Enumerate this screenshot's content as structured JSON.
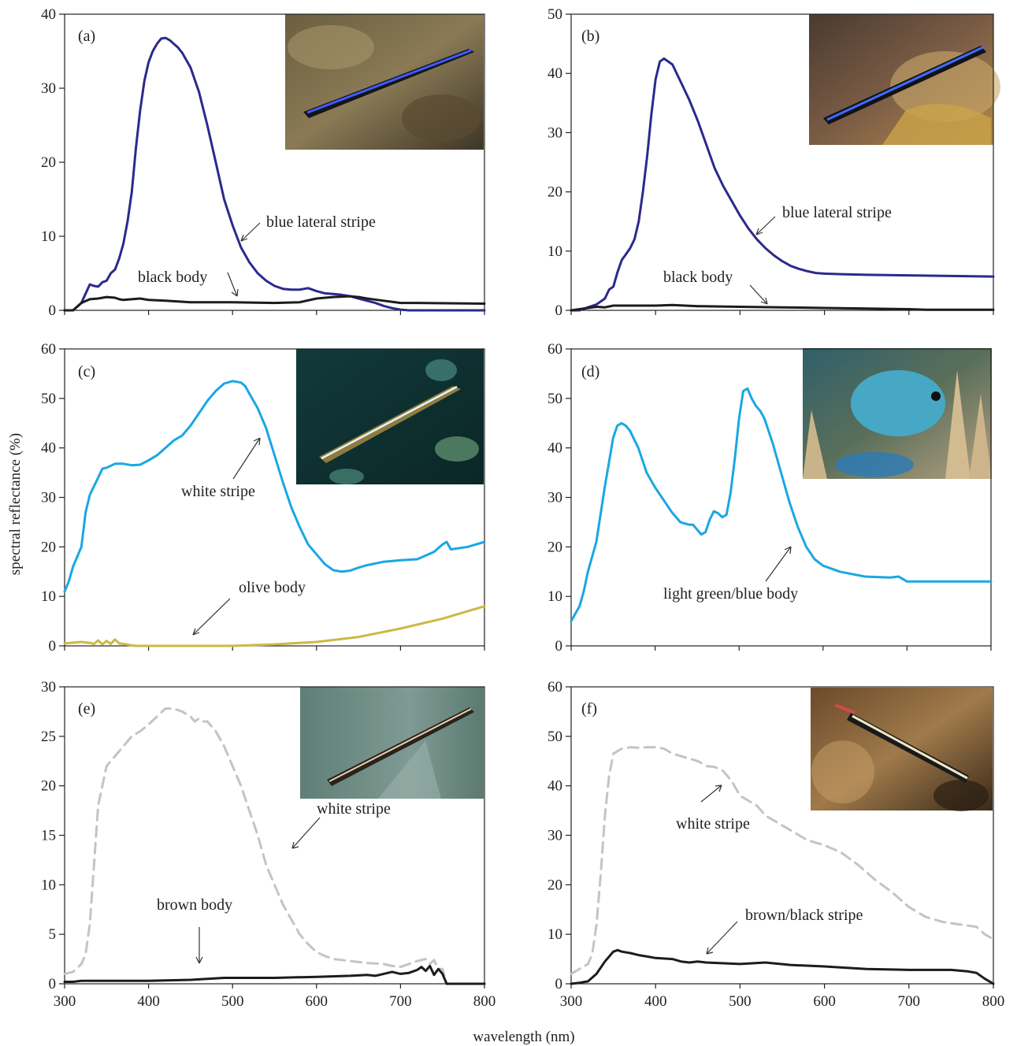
{
  "figure": {
    "xlabel": "wavelength (nm)",
    "ylabel": "spectral reflectance (%)"
  },
  "colors": {
    "navy": "#2b2a8c",
    "black": "#1c1c1c",
    "sky": "#1aa7e4",
    "olive": "#cbb944",
    "grey_dashed": "#c4c4c4"
  },
  "chart_data": [
    {
      "type": "line",
      "panel": "(a)",
      "xlim": [
        300,
        800
      ],
      "ylim": [
        0,
        40
      ],
      "xticks": [
        300,
        400,
        500,
        600,
        700,
        800
      ],
      "yticks": [
        0,
        10,
        20,
        30,
        40
      ],
      "photo": "cleaner fish with blue lateral stripe",
      "series": [
        {
          "name": "blue lateral stripe",
          "color": "navy",
          "dashed": false,
          "x": [
            300,
            310,
            320,
            330,
            335,
            340,
            345,
            350,
            355,
            360,
            365,
            370,
            375,
            380,
            385,
            390,
            395,
            400,
            405,
            410,
            415,
            420,
            425,
            430,
            435,
            440,
            450,
            460,
            470,
            480,
            490,
            500,
            510,
            520,
            530,
            540,
            550,
            560,
            570,
            580,
            590,
            600,
            610,
            620,
            630,
            640,
            650,
            660,
            670,
            680,
            690,
            700,
            710,
            720,
            800
          ],
          "y": [
            0,
            0,
            1,
            3.5,
            3.3,
            3.2,
            3.8,
            4,
            5,
            5.5,
            7,
            9,
            12,
            16,
            22,
            27,
            31,
            33.5,
            35,
            36,
            36.7,
            36.8,
            36.5,
            36,
            35.5,
            34.8,
            32.8,
            29.5,
            25,
            20,
            15,
            11.5,
            8.5,
            6.5,
            5,
            4,
            3.3,
            2.9,
            2.8,
            2.8,
            3,
            2.6,
            2.3,
            2.2,
            2.1,
            1.9,
            1.6,
            1.3,
            1,
            0.6,
            0.3,
            0.1,
            0,
            0,
            0
          ]
        },
        {
          "name": "black body",
          "color": "black",
          "dashed": false,
          "x": [
            300,
            310,
            320,
            330,
            340,
            350,
            360,
            365,
            370,
            380,
            390,
            400,
            420,
            450,
            500,
            550,
            580,
            600,
            620,
            640,
            650,
            660,
            680,
            700,
            720,
            800
          ],
          "y": [
            0,
            0,
            1,
            1.5,
            1.6,
            1.8,
            1.7,
            1.5,
            1.4,
            1.5,
            1.6,
            1.4,
            1.3,
            1.1,
            1.1,
            1.0,
            1.1,
            1.6,
            1.8,
            1.9,
            1.8,
            1.6,
            1.3,
            1.0,
            1.0,
            0.9
          ]
        }
      ],
      "annotations": [
        {
          "text": "blue lateral stripe"
        },
        {
          "text": "black body"
        }
      ]
    },
    {
      "type": "line",
      "panel": "(b)",
      "xlim": [
        300,
        800
      ],
      "ylim": [
        0,
        50
      ],
      "xticks": [
        300,
        400,
        500,
        600,
        700,
        800
      ],
      "yticks": [
        0,
        10,
        20,
        30,
        40,
        50
      ],
      "photo": "cleaner fish with blue lateral stripe near host fish",
      "series": [
        {
          "name": "blue lateral stripe",
          "color": "navy",
          "dashed": false,
          "x": [
            300,
            310,
            320,
            330,
            340,
            345,
            350,
            355,
            360,
            365,
            370,
            375,
            380,
            385,
            390,
            395,
            400,
            405,
            410,
            420,
            430,
            440,
            450,
            460,
            470,
            480,
            490,
            500,
            510,
            520,
            530,
            540,
            550,
            560,
            570,
            580,
            590,
            600,
            620,
            650,
            700,
            750,
            800
          ],
          "y": [
            0,
            0,
            0.5,
            1,
            2,
            3.5,
            4,
            6.5,
            8.5,
            9.5,
            10.5,
            12,
            15,
            20,
            26,
            33,
            39,
            42,
            42.5,
            41.5,
            38.5,
            35.5,
            32,
            28,
            24,
            21,
            18.5,
            16,
            13.8,
            12,
            10.5,
            9.3,
            8.3,
            7.5,
            7,
            6.6,
            6.3,
            6.2,
            6.1,
            6,
            5.9,
            5.8,
            5.7
          ]
        },
        {
          "name": "black body",
          "color": "black",
          "dashed": false,
          "x": [
            300,
            320,
            330,
            340,
            350,
            400,
            420,
            450,
            500,
            550,
            600,
            650,
            700,
            720,
            800
          ],
          "y": [
            0,
            0.4,
            0.6,
            0.5,
            0.8,
            0.8,
            0.9,
            0.7,
            0.6,
            0.5,
            0.4,
            0.3,
            0.2,
            0.1,
            0.1
          ]
        }
      ],
      "annotations": [
        {
          "text": "blue lateral stripe"
        },
        {
          "text": "black body"
        }
      ]
    },
    {
      "type": "line",
      "panel": "(c)",
      "xlim": [
        300,
        800
      ],
      "ylim": [
        0,
        60
      ],
      "xticks": [
        300,
        400,
        500,
        600,
        700,
        800
      ],
      "yticks": [
        0,
        10,
        20,
        30,
        40,
        50,
        60
      ],
      "photo": "wrasse with white stripe",
      "series": [
        {
          "name": "white stripe",
          "color": "sky",
          "dashed": false,
          "x": [
            300,
            305,
            310,
            320,
            325,
            330,
            340,
            345,
            350,
            360,
            370,
            380,
            390,
            400,
            410,
            420,
            430,
            440,
            450,
            460,
            470,
            480,
            490,
            500,
            510,
            515,
            520,
            530,
            540,
            550,
            560,
            570,
            580,
            590,
            600,
            610,
            620,
            630,
            640,
            650,
            660,
            680,
            700,
            720,
            740,
            750,
            755,
            760,
            780,
            800
          ],
          "y": [
            11,
            13,
            16,
            20,
            27,
            30.5,
            34,
            35.8,
            36,
            36.8,
            36.8,
            36.5,
            36.6,
            37.5,
            38.5,
            40,
            41.5,
            42.5,
            44.5,
            47,
            49.5,
            51.5,
            53,
            53.5,
            53.2,
            52.5,
            51,
            48,
            44,
            38.5,
            33,
            28,
            24,
            20.5,
            18.5,
            16.5,
            15.3,
            15,
            15.2,
            15.8,
            16.3,
            17,
            17.3,
            17.5,
            19,
            20.5,
            21,
            19.5,
            20,
            21
          ]
        },
        {
          "name": "olive body",
          "color": "olive",
          "dashed": false,
          "x": [
            300,
            320,
            330,
            335,
            340,
            345,
            350,
            355,
            360,
            365,
            370,
            380,
            385,
            400,
            450,
            500,
            550,
            600,
            650,
            700,
            750,
            800
          ],
          "y": [
            0.5,
            0.8,
            0.6,
            0.4,
            1.1,
            0.3,
            1,
            0.4,
            1.3,
            0.5,
            0.4,
            0.1,
            0,
            0,
            0,
            0,
            0.3,
            0.8,
            1.8,
            3.5,
            5.5,
            8
          ]
        }
      ],
      "annotations": [
        {
          "text": "white stripe"
        },
        {
          "text": "olive body"
        }
      ]
    },
    {
      "type": "line",
      "panel": "(d)",
      "xlim": [
        300,
        800
      ],
      "ylim": [
        0,
        60
      ],
      "xticks": [
        300,
        400,
        500,
        600,
        700,
        800
      ],
      "yticks": [
        0,
        10,
        20,
        30,
        40,
        50,
        60
      ],
      "photo": "light green/blue damselfish",
      "series": [
        {
          "name": "light green/blue body",
          "color": "sky",
          "dashed": false,
          "x": [
            300,
            305,
            310,
            315,
            320,
            330,
            340,
            345,
            350,
            355,
            360,
            365,
            370,
            380,
            390,
            400,
            410,
            420,
            430,
            440,
            445,
            450,
            455,
            460,
            465,
            470,
            475,
            480,
            485,
            490,
            495,
            500,
            505,
            510,
            515,
            520,
            525,
            530,
            535,
            540,
            550,
            560,
            570,
            580,
            590,
            600,
            620,
            650,
            680,
            690,
            695,
            700,
            750,
            800
          ],
          "y": [
            5,
            6.5,
            8,
            11,
            15,
            21,
            32,
            37,
            42,
            44.5,
            45,
            44.5,
            43.5,
            40,
            35,
            32,
            29.5,
            27,
            25,
            24.5,
            24.5,
            23.5,
            22.5,
            23,
            25.5,
            27.2,
            26.8,
            26,
            26.5,
            31,
            38,
            46,
            51.5,
            52,
            50,
            48.5,
            47.5,
            46,
            43.5,
            41,
            35,
            29,
            24,
            20,
            17.5,
            16.2,
            15,
            14,
            13.8,
            14,
            13.5,
            13,
            13,
            13
          ]
        }
      ],
      "annotations": [
        {
          "text": "light green/blue body"
        }
      ]
    },
    {
      "type": "line",
      "panel": "(e)",
      "xlim": [
        300,
        800
      ],
      "ylim": [
        0,
        30
      ],
      "xticks": [
        300,
        400,
        500,
        600,
        700,
        800
      ],
      "yticks": [
        0,
        5,
        10,
        15,
        20,
        25,
        30
      ],
      "photo": "striped fish with white and brown stripes",
      "series": [
        {
          "name": "white stripe",
          "color": "grey_dashed",
          "dashed": true,
          "x": [
            300,
            310,
            320,
            325,
            330,
            335,
            340,
            350,
            360,
            370,
            380,
            390,
            400,
            410,
            420,
            430,
            440,
            450,
            455,
            460,
            465,
            470,
            480,
            490,
            500,
            510,
            520,
            530,
            540,
            550,
            560,
            570,
            580,
            590,
            600,
            610,
            620,
            640,
            660,
            680,
            690,
            700,
            710,
            720,
            730,
            735,
            740,
            745,
            750,
            755,
            800
          ],
          "y": [
            1,
            1.2,
            2,
            3,
            6,
            12,
            18,
            22,
            23,
            24,
            25,
            25.5,
            26.2,
            27,
            27.8,
            27.8,
            27.5,
            27,
            26.5,
            26.8,
            26.5,
            26.5,
            25.5,
            24,
            22,
            20,
            17.5,
            15,
            12,
            10,
            8,
            6.5,
            5,
            4,
            3.2,
            2.8,
            2.5,
            2.3,
            2.1,
            2,
            1.8,
            1.7,
            2,
            2.3,
            2.5,
            2,
            2.4,
            1.5,
            1.5,
            0,
            0
          ]
        },
        {
          "name": "brown body",
          "color": "black",
          "dashed": false,
          "x": [
            300,
            310,
            320,
            330,
            340,
            350,
            400,
            450,
            470,
            490,
            500,
            550,
            600,
            640,
            660,
            670,
            680,
            690,
            700,
            710,
            720,
            725,
            730,
            735,
            740,
            745,
            750,
            755,
            800
          ],
          "y": [
            0.2,
            0.2,
            0.3,
            0.3,
            0.3,
            0.3,
            0.3,
            0.4,
            0.5,
            0.6,
            0.6,
            0.6,
            0.7,
            0.8,
            0.9,
            0.8,
            1.0,
            1.2,
            1.0,
            1.1,
            1.4,
            1.7,
            1.3,
            1.8,
            0.9,
            1.5,
            1.0,
            0,
            0
          ]
        }
      ],
      "annotations": [
        {
          "text": "white stripe"
        },
        {
          "text": "brown body"
        }
      ]
    },
    {
      "type": "line",
      "panel": "(f)",
      "xlim": [
        300,
        800
      ],
      "ylim": [
        0,
        60
      ],
      "xticks": [
        300,
        400,
        500,
        600,
        700,
        800
      ],
      "yticks": [
        0,
        10,
        20,
        30,
        40,
        50,
        60
      ],
      "photo": "fish with white and brown/black stripes over coral",
      "series": [
        {
          "name": "white stripe",
          "color": "grey_dashed",
          "dashed": true,
          "x": [
            300,
            310,
            320,
            325,
            330,
            335,
            340,
            345,
            350,
            360,
            370,
            380,
            390,
            400,
            410,
            420,
            430,
            440,
            450,
            460,
            470,
            480,
            490,
            500,
            510,
            520,
            530,
            540,
            550,
            560,
            570,
            580,
            590,
            600,
            620,
            640,
            660,
            680,
            700,
            720,
            740,
            760,
            780,
            790,
            800
          ],
          "y": [
            2,
            3,
            4,
            6,
            12,
            22,
            34,
            42,
            46.5,
            47.5,
            47.8,
            47.7,
            47.8,
            47.8,
            47.5,
            46.5,
            46,
            45.5,
            45,
            44,
            43.8,
            43,
            41,
            38,
            37,
            36,
            34,
            33,
            32,
            31,
            30,
            29,
            28.5,
            28,
            26.5,
            24,
            21,
            18.5,
            15.5,
            13.5,
            12.5,
            12,
            11.5,
            10,
            9
          ]
        },
        {
          "name": "brown/black stripe",
          "color": "black",
          "dashed": false,
          "x": [
            300,
            310,
            320,
            330,
            340,
            350,
            355,
            360,
            370,
            380,
            390,
            400,
            420,
            430,
            440,
            450,
            460,
            500,
            530,
            560,
            600,
            650,
            700,
            750,
            770,
            780,
            790,
            800
          ],
          "y": [
            0,
            0.2,
            0.5,
            2,
            4.5,
            6.5,
            6.8,
            6.5,
            6.2,
            5.8,
            5.5,
            5.2,
            5,
            4.5,
            4.3,
            4.5,
            4.3,
            4,
            4.3,
            3.8,
            3.5,
            3,
            2.8,
            2.8,
            2.5,
            2.2,
            1,
            0
          ]
        }
      ],
      "annotations": [
        {
          "text": "white stripe"
        },
        {
          "text": "brown/black stripe"
        }
      ]
    }
  ]
}
